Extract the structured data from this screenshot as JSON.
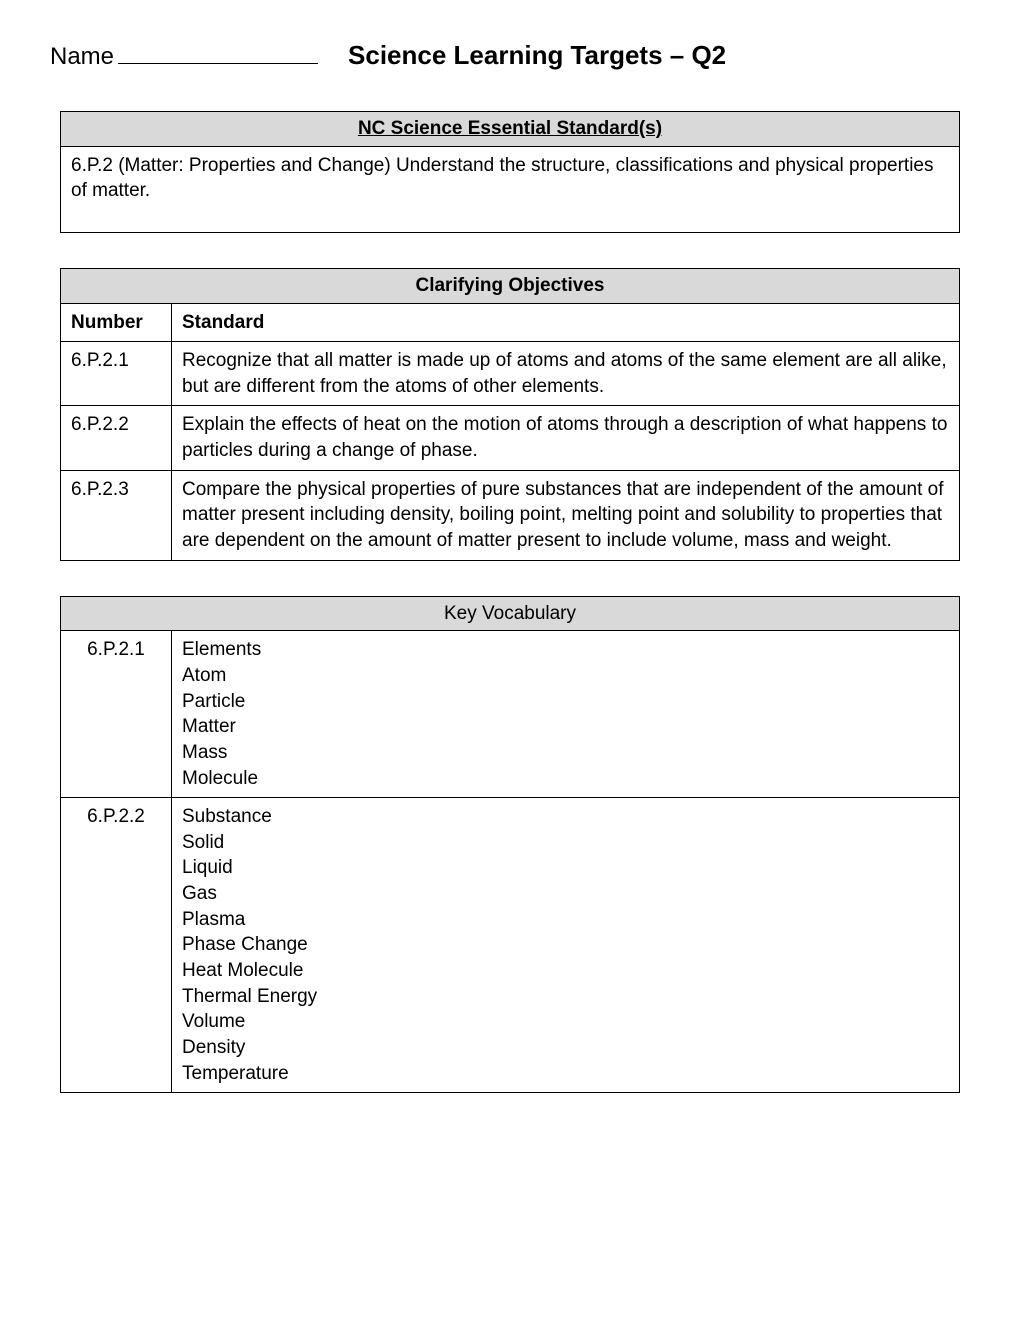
{
  "header": {
    "name_label": "Name",
    "title": "Science Learning Targets – Q2"
  },
  "essential_standards": {
    "heading": "NC Science Essential Standard(s)",
    "text": "6.P.2 (Matter: Properties and Change) Understand the structure, classifications and physical properties of matter."
  },
  "clarifying_objectives": {
    "heading": "Clarifying Objectives",
    "col_number": "Number",
    "col_standard": "Standard",
    "rows": [
      {
        "number": "6.P.2.1",
        "standard": "Recognize that all matter is made up of atoms and atoms of the same element are all alike, but are different from the atoms of other elements."
      },
      {
        "number": "6.P.2.2",
        "standard": "Explain the effects of heat on the motion of atoms through a description of what happens to particles during a change of phase."
      },
      {
        "number": "6.P.2.3",
        "standard": "Compare the physical properties of pure substances that are independent of the amount of matter present including density, boiling point, melting point and solubility to properties that are dependent on the amount of matter present to include volume, mass and weight."
      }
    ]
  },
  "key_vocabulary": {
    "heading": "Key Vocabulary",
    "rows": [
      {
        "number": "6.P.2.1",
        "terms": "Elements\nAtom\nParticle\nMatter\nMass\nMolecule"
      },
      {
        "number": "6.P.2.2",
        "terms": "Substance\nSolid\nLiquid\nGas\nPlasma\nPhase Change\nHeat Molecule\nThermal Energy\nVolume\nDensity\nTemperature"
      }
    ]
  }
}
